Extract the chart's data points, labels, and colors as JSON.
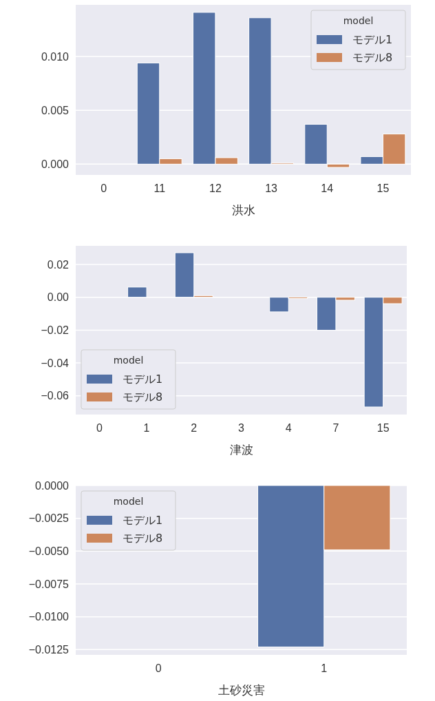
{
  "chart_data": [
    {
      "type": "bar",
      "xlabel": "洪水",
      "categories": [
        "0",
        "11",
        "12",
        "13",
        "14",
        "15"
      ],
      "ylim": [
        -0.001,
        0.0148
      ],
      "yticks": [
        {
          "value": 0,
          "label": "0.000"
        },
        {
          "value": 0.005,
          "label": "0.005"
        },
        {
          "value": 0.01,
          "label": "0.010"
        }
      ],
      "grid": "y",
      "legend": "top right",
      "legend_title": "model",
      "series": [
        {
          "name": "モデル1",
          "color": "#5572a5",
          "values": [
            0,
            0.0094,
            0.0141,
            0.0136,
            0.0037,
            0.0007
          ]
        },
        {
          "name": "モデル8",
          "color": "#cd875c",
          "values": [
            0,
            0.0005,
            0.0006,
            0.0001,
            -0.0003,
            0.0028
          ]
        }
      ]
    },
    {
      "type": "bar",
      "xlabel": "津波",
      "categories": [
        "0",
        "1",
        "2",
        "3",
        "4",
        "7",
        "15"
      ],
      "ylim": [
        -0.0714,
        0.0313
      ],
      "yticks": [
        {
          "value": -0.06,
          "label": "−0.06"
        },
        {
          "value": -0.04,
          "label": "−0.04"
        },
        {
          "value": -0.02,
          "label": "−0.02"
        },
        {
          "value": 0,
          "label": "0.00"
        },
        {
          "value": 0.02,
          "label": "0.02"
        }
      ],
      "grid": "y",
      "legend": "bottom left",
      "legend_title": "model",
      "series": [
        {
          "name": "モデル1",
          "color": "#5572a5",
          "values": [
            0,
            0.0062,
            0.0271,
            null,
            -0.0089,
            -0.0201,
            -0.0668
          ]
        },
        {
          "name": "モデル8",
          "color": "#cd875c",
          "values": [
            0,
            null,
            0.001,
            null,
            -0.0008,
            -0.0018,
            -0.0039
          ]
        }
      ]
    },
    {
      "type": "bar",
      "xlabel": "土砂災害",
      "categories": [
        "0",
        "1"
      ],
      "ylim": [
        -0.0129,
        0
      ],
      "yticks": [
        {
          "value": -0.0125,
          "label": "−0.0125"
        },
        {
          "value": -0.01,
          "label": "−0.0100"
        },
        {
          "value": -0.0075,
          "label": "−0.0075"
        },
        {
          "value": -0.005,
          "label": "−0.0050"
        },
        {
          "value": -0.0025,
          "label": "−0.0025"
        },
        {
          "value": 0,
          "label": "0.0000"
        }
      ],
      "grid": "y",
      "legend": "top left",
      "legend_title": "model",
      "series": [
        {
          "name": "モデル1",
          "color": "#5572a5",
          "values": [
            0,
            -0.0123
          ]
        },
        {
          "name": "モデル8",
          "color": "#cd875c",
          "values": [
            0,
            -0.0049
          ]
        }
      ]
    }
  ]
}
